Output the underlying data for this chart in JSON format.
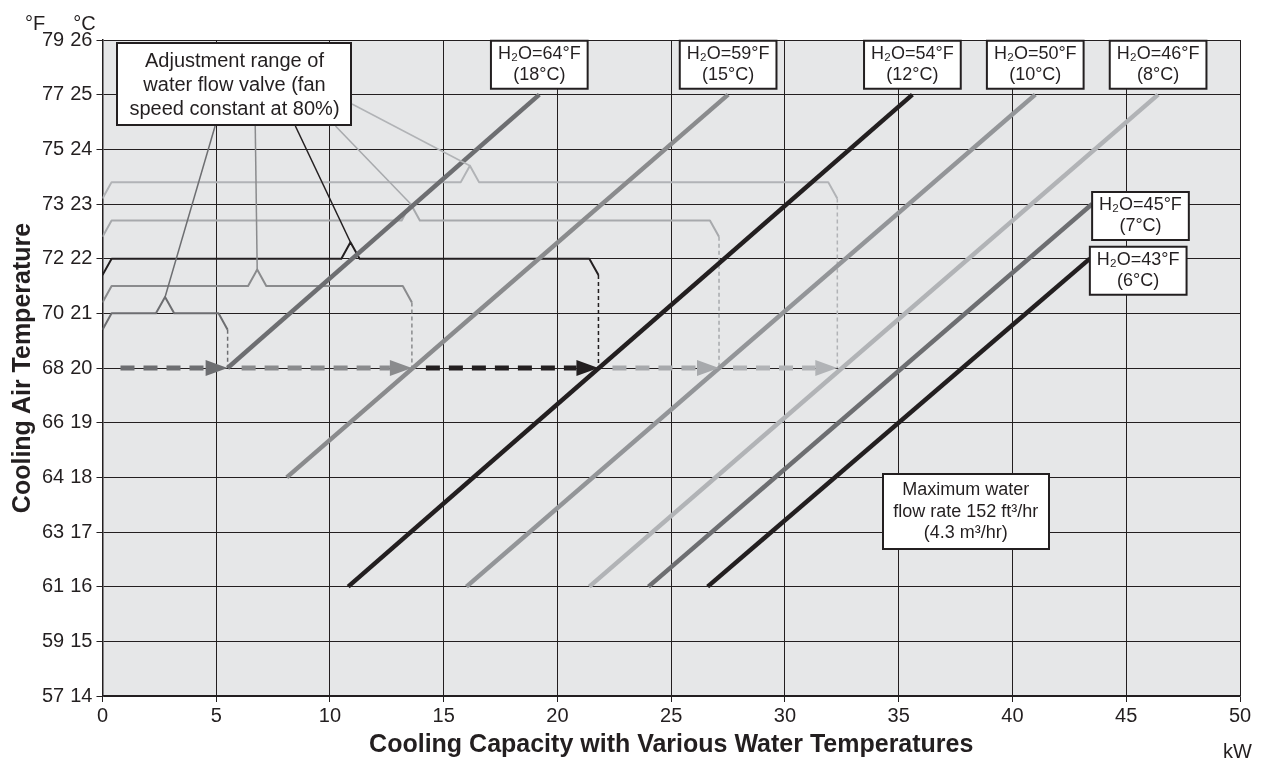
{
  "chart_data": {
    "type": "line",
    "xlabel": "Cooling Capacity with Various Water Temperatures",
    "y2label": "Cooling Air Temperature",
    "annotations": [
      "°F",
      "°C",
      "kW",
      {
        "text": "Adjustment range of water flow valve (fan speed constant at 80%)",
        "x": 2.75,
        "y": 21.3
      },
      "Maximum water flow rate 152 ft³/hr (4.3 m³/hr)"
    ],
    "xlim": [
      0,
      50
    ],
    "xticks": [
      0,
      5,
      10,
      15,
      20,
      25,
      30,
      35,
      40,
      45,
      50
    ],
    "ylim": [
      14,
      26
    ],
    "yticks": [
      14,
      15,
      16,
      17,
      18,
      19,
      20,
      21,
      22,
      23,
      24,
      25,
      26
    ],
    "y2lim": [
      57.2,
      78.8
    ],
    "y2ticks": [
      {
        "value": 57.2,
        "label": "57"
      },
      59,
      {
        "value": 60.8,
        "label": "61"
      },
      {
        "value": 62.6,
        "label": "63"
      },
      {
        "value": 64.4,
        "label": "64"
      },
      {
        "value": 66.2,
        "label": "66"
      },
      68,
      {
        "value": 69.8,
        "label": "70"
      },
      {
        "value": 71.6,
        "label": "72"
      },
      {
        "value": 73.4,
        "label": "73"
      },
      {
        "value": 75.2,
        "label": "75"
      },
      77,
      {
        "value": 78.8,
        "label": "79"
      }
    ],
    "grid": true,
    "legend": false,
    "line_style": "solid",
    "series": [
      {
        "name": "H₂O=64°F (18°C)",
        "color": "#6d6e71",
        "x": [
          5.5,
          19.2
        ],
        "values": [
          20,
          25
        ]
      },
      {
        "name": "H₂O=59°F (15°C)",
        "color": "#8a8b8d",
        "x": [
          8.1,
          27.5
        ],
        "values": [
          18,
          25
        ]
      },
      {
        "name": "H₂O=54°F (12°C)",
        "color": "#231f20",
        "x": [
          10.8,
          35.6
        ],
        "values": [
          16,
          25
        ]
      },
      {
        "name": "H₂O=50°F (10°C)",
        "color": "#939598",
        "x": [
          16.0,
          41.0
        ],
        "values": [
          16,
          25
        ]
      },
      {
        "name": "H₂O=46°F (8°C)",
        "color": "#b1b3b6",
        "x": [
          21.4,
          46.4
        ],
        "values": [
          16,
          25
        ]
      },
      {
        "name": "H₂O=45°F (7°C)",
        "color": "#6d6e71",
        "x": [
          24.0,
          43.5
        ],
        "values": [
          16,
          23
        ]
      },
      {
        "name": "H₂O=43°F (6°C)",
        "color": "#231f20",
        "x": [
          26.6,
          43.4
        ],
        "values": [
          16,
          22
        ]
      },
      {
        "color": "#6d6e71",
        "x": [
          0,
          0.4,
          2.35,
          2.75,
          3.15,
          5.1,
          5.5
        ],
        "values": [
          20.7,
          21,
          21,
          21.3,
          21,
          21,
          20.7
        ]
      },
      {
        "color": "#8a8b8d",
        "x": [
          0,
          0.4,
          6.4,
          6.8,
          7.2,
          13.2,
          13.6
        ],
        "values": [
          21.2,
          21.5,
          21.5,
          21.8,
          21.5,
          21.5,
          21.2
        ]
      },
      {
        "color": "#231f20",
        "x": [
          0,
          0.4,
          10.5,
          10.9,
          11.3,
          21.4,
          21.8
        ],
        "values": [
          21.7,
          22,
          22,
          22.3,
          22,
          22,
          21.7
        ]
      },
      {
        "color": "#a7a9ac",
        "x": [
          0,
          0.4,
          13.15,
          13.55,
          13.95,
          26.7,
          27.1
        ],
        "values": [
          22.4,
          22.7,
          22.7,
          23,
          22.7,
          22.7,
          22.4
        ]
      },
      {
        "color": "#b1b3b6",
        "x": [
          0,
          0.4,
          15.75,
          16.15,
          16.55,
          31.9,
          32.3
        ],
        "values": [
          23.1,
          23.4,
          23.4,
          23.7,
          23.4,
          23.4,
          23.1
        ]
      },
      {
        "color": "#6d6e71",
        "x": [
          5.5,
          5.5
        ],
        "values": [
          20.7,
          20
        ],
        "line_style": "dotted"
      },
      {
        "color": "#8a8b8d",
        "x": [
          13.6,
          13.6
        ],
        "values": [
          21.2,
          20
        ],
        "line_style": "dotted"
      },
      {
        "color": "#231f20",
        "x": [
          21.8,
          21.8
        ],
        "values": [
          21.7,
          20
        ],
        "line_style": "dotted"
      },
      {
        "color": "#a7a9ac",
        "x": [
          27.1,
          27.1
        ],
        "values": [
          22.4,
          20
        ],
        "line_style": "dotted"
      },
      {
        "color": "#b1b3b6",
        "x": [
          32.3,
          32.3
        ],
        "values": [
          23.1,
          20
        ],
        "line_style": "dotted"
      }
    ]
  }
}
